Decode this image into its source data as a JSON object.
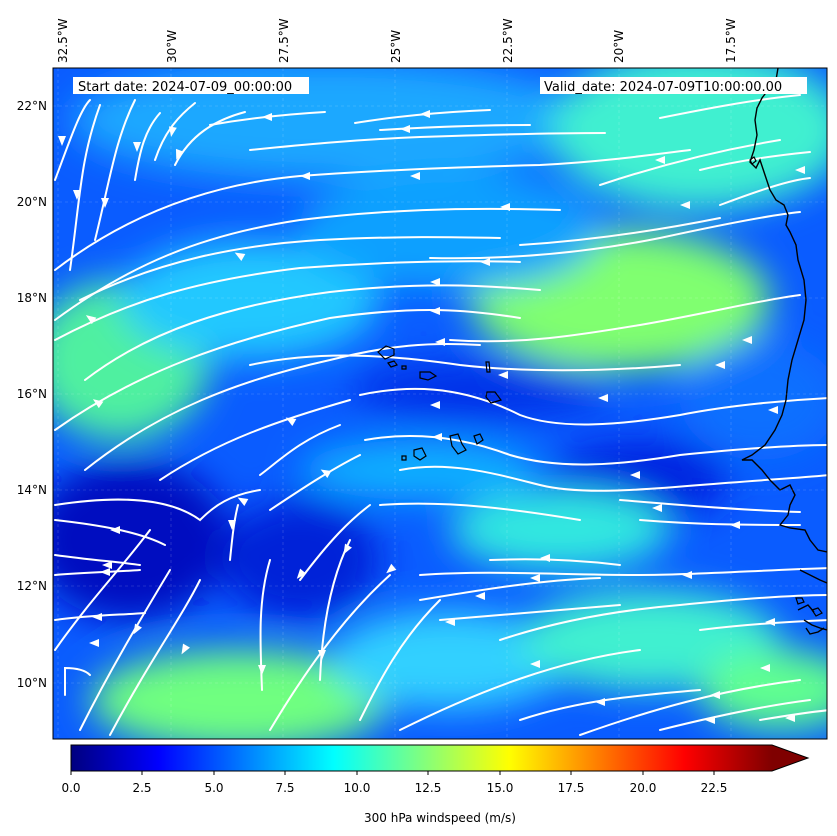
{
  "map": {
    "start_date": "Start date: 2024-07-09_00:00:00",
    "valid_date": "Valid_date: 2024-07-09T10:00:00.00",
    "lon_labels": [
      "32.5°W",
      "30°W",
      "27.5°W",
      "25°W",
      "22.5°W",
      "20°W",
      "17.5°W"
    ],
    "lat_labels": [
      "22°N",
      "20°N",
      "18°N",
      "16°N",
      "14°N",
      "12°N",
      "10°N"
    ],
    "colorbar": {
      "label": "300 hPa windspeed (m/s)",
      "ticks": [
        "0.0",
        "2.5",
        "5.0",
        "7.5",
        "10.0",
        "12.5",
        "15.0",
        "17.5",
        "20.0",
        "22.5"
      ],
      "min": 0,
      "max": 25,
      "extend": "max",
      "colormap": "jet"
    },
    "colors": {
      "ocean_base": "#0a5cff",
      "streamline": "#ffffff",
      "coastline": "#000000"
    }
  }
}
